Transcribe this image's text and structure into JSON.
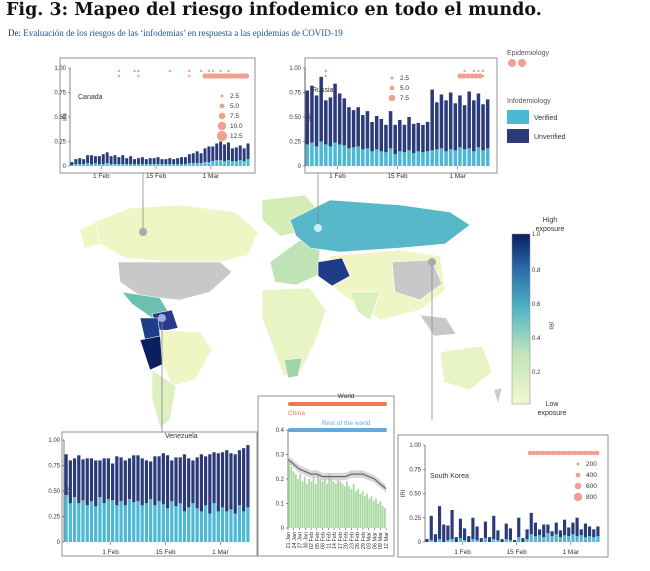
{
  "figure": {
    "title": "Fig. 3: Mapeo del riesgo infodemico en todo el mundo.",
    "from_prefix": "De:",
    "from_link": "Evaluación de los riesgos de las ‘infodemias’ en respuesta a las epidemias de COVID-19"
  },
  "legend_epi": {
    "title": "Epidemiology"
  },
  "legend_info": {
    "title": "Infodemiology",
    "verified": "Verified",
    "unverified": "Unverified"
  },
  "colorbar": {
    "high": [
      "High",
      "exposure"
    ],
    "low": [
      "Low",
      "exposure"
    ],
    "label": "IRI",
    "ticks": [
      "0.2",
      "0.4",
      "0.6",
      "0.8",
      "1.0"
    ]
  },
  "colors": {
    "verified": "#4db8d4",
    "unverified": "#2b3b7a",
    "epi": "#f0a090",
    "china": "#f07850",
    "rest": "#6aa8d8",
    "greenbar": "#a8d8a0",
    "map_low": "#f2f5c8",
    "map_high": "#0b1f5e",
    "no_data": "#c8c8c8"
  },
  "chart_data": [
    {
      "type": "bar",
      "panel": "Canada",
      "ylabel": "IRI",
      "ylim": [
        0,
        1
      ],
      "yticks": [
        "0",
        "0.25",
        "0.50",
        "0.75",
        "1.00"
      ],
      "xticks": [
        "1 Feb",
        "15 Feb",
        "1 Mar"
      ],
      "size_legend": [
        "2.5",
        "5.0",
        "7.5",
        "10.0",
        "12.5"
      ],
      "verified": [
        0.01,
        0.02,
        0.02,
        0.02,
        0.03,
        0.02,
        0.03,
        0.02,
        0.02,
        0.03,
        0.02,
        0.02,
        0.02,
        0.02,
        0.02,
        0.02,
        0.02,
        0.02,
        0.02,
        0.02,
        0.02,
        0.02,
        0.02,
        0.02,
        0.02,
        0.02,
        0.02,
        0.02,
        0.02,
        0.02,
        0.03,
        0.03,
        0.03,
        0.03,
        0.04,
        0.04,
        0.05,
        0.06,
        0.06,
        0.05,
        0.06,
        0.05,
        0.05,
        0.06,
        0.05,
        0.07
      ],
      "unverified": [
        0.03,
        0.05,
        0.06,
        0.05,
        0.08,
        0.09,
        0.07,
        0.08,
        0.1,
        0.11,
        0.08,
        0.09,
        0.07,
        0.09,
        0.06,
        0.08,
        0.05,
        0.06,
        0.07,
        0.05,
        0.06,
        0.06,
        0.07,
        0.05,
        0.05,
        0.06,
        0.05,
        0.06,
        0.07,
        0.07,
        0.09,
        0.1,
        0.12,
        0.1,
        0.14,
        0.16,
        0.15,
        0.17,
        0.19,
        0.17,
        0.18,
        0.13,
        0.14,
        0.15,
        0.13,
        0.16
      ]
    },
    {
      "type": "bar",
      "panel": "Russia",
      "ylabel": "IRI",
      "ylim": [
        0,
        1
      ],
      "yticks": [
        "0",
        "0.25",
        "0.50",
        "0.75",
        "1.00"
      ],
      "xticks": [
        "1 Feb",
        "15 Feb",
        "1 Mar"
      ],
      "size_legend": [
        "2.5",
        "5.0",
        "7.5"
      ],
      "verified": [
        0.22,
        0.24,
        0.2,
        0.25,
        0.22,
        0.2,
        0.24,
        0.22,
        0.21,
        0.18,
        0.19,
        0.2,
        0.17,
        0.18,
        0.15,
        0.17,
        0.15,
        0.14,
        0.18,
        0.12,
        0.15,
        0.14,
        0.16,
        0.13,
        0.15,
        0.14,
        0.15,
        0.16,
        0.17,
        0.18,
        0.15,
        0.17,
        0.16,
        0.19,
        0.17,
        0.18,
        0.15,
        0.19,
        0.16,
        0.18
      ],
      "unverified": [
        0.55,
        0.58,
        0.52,
        0.66,
        0.45,
        0.5,
        0.6,
        0.52,
        0.48,
        0.42,
        0.38,
        0.4,
        0.35,
        0.38,
        0.3,
        0.34,
        0.33,
        0.28,
        0.38,
        0.3,
        0.32,
        0.28,
        0.34,
        0.3,
        0.29,
        0.28,
        0.3,
        0.62,
        0.48,
        0.55,
        0.52,
        0.58,
        0.48,
        0.53,
        0.45,
        0.58,
        0.52,
        0.55,
        0.47,
        0.5
      ]
    },
    {
      "type": "bar",
      "panel": "Venezuela",
      "ylabel": "IRI",
      "ylim": [
        0,
        1
      ],
      "yticks": [
        "0",
        "0.25",
        "0.50",
        "0.75",
        "1.00"
      ],
      "xticks": [
        "1 Feb",
        "15 Feb",
        "1 Mar"
      ],
      "verified": [
        0.46,
        0.38,
        0.44,
        0.38,
        0.41,
        0.36,
        0.4,
        0.35,
        0.44,
        0.38,
        0.42,
        0.41,
        0.36,
        0.4,
        0.36,
        0.42,
        0.39,
        0.4,
        0.36,
        0.38,
        0.42,
        0.36,
        0.4,
        0.37,
        0.33,
        0.4,
        0.35,
        0.38,
        0.3,
        0.34,
        0.38,
        0.33,
        0.3,
        0.36,
        0.28,
        0.38,
        0.3,
        0.34,
        0.3,
        0.32,
        0.28,
        0.36,
        0.3,
        0.34
      ],
      "unverified": [
        0.4,
        0.42,
        0.38,
        0.47,
        0.4,
        0.46,
        0.42,
        0.45,
        0.36,
        0.44,
        0.4,
        0.36,
        0.48,
        0.43,
        0.44,
        0.4,
        0.46,
        0.45,
        0.46,
        0.42,
        0.37,
        0.48,
        0.44,
        0.5,
        0.52,
        0.4,
        0.48,
        0.45,
        0.56,
        0.48,
        0.42,
        0.5,
        0.56,
        0.48,
        0.58,
        0.5,
        0.57,
        0.54,
        0.6,
        0.55,
        0.58,
        0.54,
        0.62,
        0.61
      ]
    },
    {
      "type": "bar",
      "panel": "South Korea",
      "ylabel": "IRI",
      "ylim": [
        0,
        1
      ],
      "yticks": [
        "0",
        "0.25",
        "0.50",
        "0.75",
        "1.00"
      ],
      "xticks": [
        "1 Feb",
        "15 Feb",
        "1 Mar"
      ],
      "size_legend": [
        "200",
        "400",
        "600",
        "800"
      ],
      "verified": [
        0,
        0.02,
        0,
        0.03,
        0,
        0.02,
        0.03,
        0,
        0.04,
        0.02,
        0,
        0.03,
        0.02,
        0,
        0.04,
        0,
        0.03,
        0.02,
        0,
        0.03,
        0.02,
        0,
        0.05,
        0,
        0.03,
        0.08,
        0.06,
        0.07,
        0.05,
        0.09,
        0.06,
        0.08,
        0.05,
        0.07,
        0.06,
        0.08,
        0.06,
        0.07,
        0.05,
        0.06,
        0.05,
        0.06
      ],
      "unverified": [
        0.03,
        0.25,
        0.08,
        0.34,
        0.18,
        0.15,
        0.3,
        0.05,
        0.2,
        0.12,
        0.06,
        0.22,
        0.14,
        0.04,
        0.17,
        0.05,
        0.24,
        0.1,
        0.03,
        0.16,
        0.12,
        0.02,
        0.2,
        0.04,
        0.1,
        0.22,
        0.14,
        0.06,
        0.13,
        0.09,
        0.05,
        0.12,
        0.07,
        0.16,
        0.09,
        0.12,
        0.19,
        0.06,
        0.14,
        0.1,
        0.08,
        0.1
      ]
    },
    {
      "type": "bar",
      "panel": "China / World",
      "series_labels": {
        "world": "World",
        "china": "China",
        "rest": "Rest of the world"
      },
      "ylim": [
        0,
        0.4
      ],
      "yticks": [
        "0",
        "0.1",
        "0.2",
        "0.3",
        "0.4"
      ],
      "xticks": [
        "21 Jan",
        "24 Jan",
        "27 Jan",
        "30 Jan",
        "02 Feb",
        "05 Feb",
        "08 Feb",
        "11 Feb",
        "14 Feb",
        "17 Feb",
        "20 Feb",
        "23 Feb",
        "26 Feb",
        "29 Feb",
        "03 Mar",
        "06 Mar",
        "09 Mar",
        "12 Mar"
      ],
      "values": [
        0.27,
        0.25,
        0.23,
        0.22,
        0.2,
        0.22,
        0.19,
        0.21,
        0.18,
        0.2,
        0.19,
        0.21,
        0.18,
        0.22,
        0.2,
        0.19,
        0.2,
        0.18,
        0.22,
        0.2,
        0.19,
        0.18,
        0.2,
        0.19,
        0.18,
        0.17,
        0.19,
        0.17,
        0.16,
        0.18,
        0.15,
        0.16,
        0.14,
        0.15,
        0.13,
        0.14,
        0.12,
        0.13,
        0.11,
        0.12,
        0.1,
        0.11,
        0.09,
        0.08
      ],
      "trend": [
        0.28,
        0.26,
        0.24,
        0.23,
        0.22,
        0.22,
        0.21,
        0.21,
        0.21,
        0.21,
        0.21,
        0.22,
        0.22,
        0.22,
        0.21,
        0.2,
        0.18,
        0.16
      ]
    }
  ]
}
